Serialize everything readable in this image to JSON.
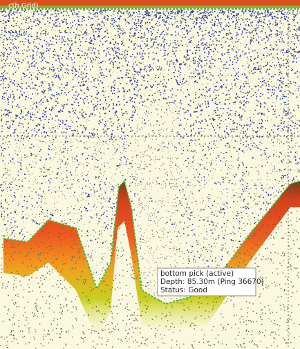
{
  "header": {
    "label": "cth.Grid)"
  },
  "tooltip": {
    "lines": [
      "bottom pick (active)",
      "Depth: 85.30m (Ping 36670)",
      "Status: Good"
    ]
  }
}
